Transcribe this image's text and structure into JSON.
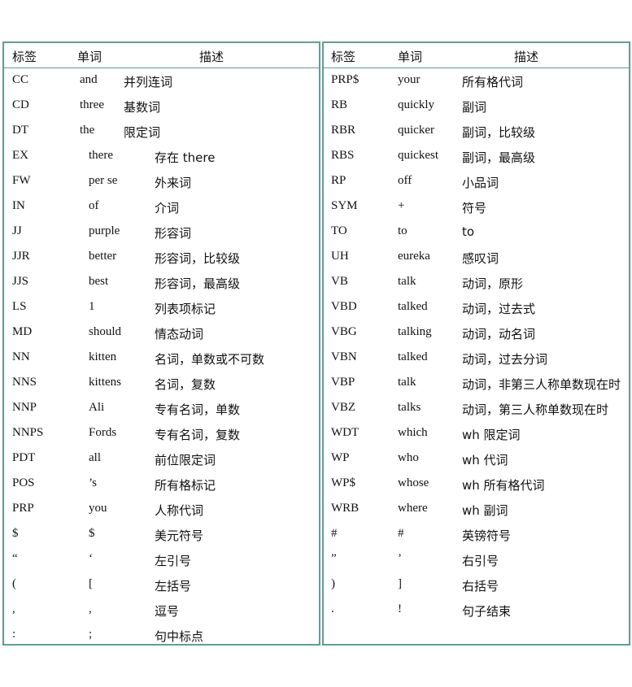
{
  "headers": {
    "tag": "标签",
    "word": "单词",
    "desc": "描述"
  },
  "left_rows": [
    {
      "tag": "CC",
      "word": "and",
      "desc": "并列连词"
    },
    {
      "tag": "CD",
      "word": "three",
      "desc": "基数词"
    },
    {
      "tag": "DT",
      "word": "the",
      "desc": "限定词"
    },
    {
      "tag": "EX",
      "word": "there",
      "desc": "存在 there"
    },
    {
      "tag": "FW",
      "word": "per se",
      "desc": "外来词"
    },
    {
      "tag": "IN",
      "word": "of",
      "desc": "介词"
    },
    {
      "tag": "JJ",
      "word": "purple",
      "desc": "形容词"
    },
    {
      "tag": "JJR",
      "word": "better",
      "desc": "形容词，比较级"
    },
    {
      "tag": "JJS",
      "word": "best",
      "desc": "形容词，最高级"
    },
    {
      "tag": "LS",
      "word": "1",
      "desc": "列表项标记"
    },
    {
      "tag": "MD",
      "word": "should",
      "desc": "情态动词"
    },
    {
      "tag": "NN",
      "word": "kitten",
      "desc": "名词，单数或不可数"
    },
    {
      "tag": "NNS",
      "word": "kittens",
      "desc": "名词，复数"
    },
    {
      "tag": "NNP",
      "word": "Ali",
      "desc": "专有名词，单数"
    },
    {
      "tag": "NNPS",
      "word": "Fords",
      "desc": "专有名词，复数"
    },
    {
      "tag": "PDT",
      "word": "all",
      "desc": "前位限定词"
    },
    {
      "tag": "POS",
      "word": "’s",
      "desc": "所有格标记"
    },
    {
      "tag": "PRP",
      "word": "you",
      "desc": "人称代词"
    },
    {
      "tag": "$",
      "word": "$",
      "desc": "美元符号"
    },
    {
      "tag": " “",
      "word": "‘",
      "desc": "左引号"
    },
    {
      "tag": "(",
      "word": "[",
      "desc": "左括号"
    },
    {
      "tag": ",",
      "word": ",",
      "desc": "逗号"
    },
    {
      "tag": ":",
      "word": ";",
      "desc": "句中标点"
    }
  ],
  "right_rows": [
    {
      "tag": "PRP$",
      "word": "your",
      "desc": "所有格代词"
    },
    {
      "tag": "RB",
      "word": "quickly",
      "desc": "副词"
    },
    {
      "tag": "RBR",
      "word": "quicker",
      "desc": "副词，比较级"
    },
    {
      "tag": "RBS",
      "word": "quickest",
      "desc": "副词，最高级"
    },
    {
      "tag": "RP",
      "word": "off",
      "desc": "小品词"
    },
    {
      "tag": "SYM",
      "word": "+",
      "desc": "符号"
    },
    {
      "tag": "TO",
      "word": "to",
      "desc": "to"
    },
    {
      "tag": "UH",
      "word": "eureka",
      "desc": "感叹词"
    },
    {
      "tag": "VB",
      "word": "talk",
      "desc": "动词，原形"
    },
    {
      "tag": "VBD",
      "word": "talked",
      "desc": "动词，过去式"
    },
    {
      "tag": "VBG",
      "word": "talking",
      "desc": "动词，动名词"
    },
    {
      "tag": "VBN",
      "word": "talked",
      "desc": "动词，过去分词"
    },
    {
      "tag": "VBP",
      "word": "talk",
      "desc": "动词，非第三人称单数现在时"
    },
    {
      "tag": "VBZ",
      "word": "talks",
      "desc": "动词，第三人称单数现在时"
    },
    {
      "tag": "WDT",
      "word": "which",
      "desc": "wh 限定词"
    },
    {
      "tag": "WP",
      "word": "who",
      "desc": "wh 代词"
    },
    {
      "tag": "WP$",
      "word": "whose",
      "desc": "wh 所有格代词"
    },
    {
      "tag": "WRB",
      "word": "where",
      "desc": "wh 副词"
    },
    {
      "tag": "#",
      "word": "#",
      "desc": "英镑符号"
    },
    {
      "tag": "”",
      "word": "’",
      "desc": "右引号"
    },
    {
      "tag": ")",
      "word": "]",
      "desc": "右括号"
    },
    {
      "tag": ".",
      "word": "!",
      "desc": "句子结束"
    }
  ],
  "border_color": "#5f9f99"
}
